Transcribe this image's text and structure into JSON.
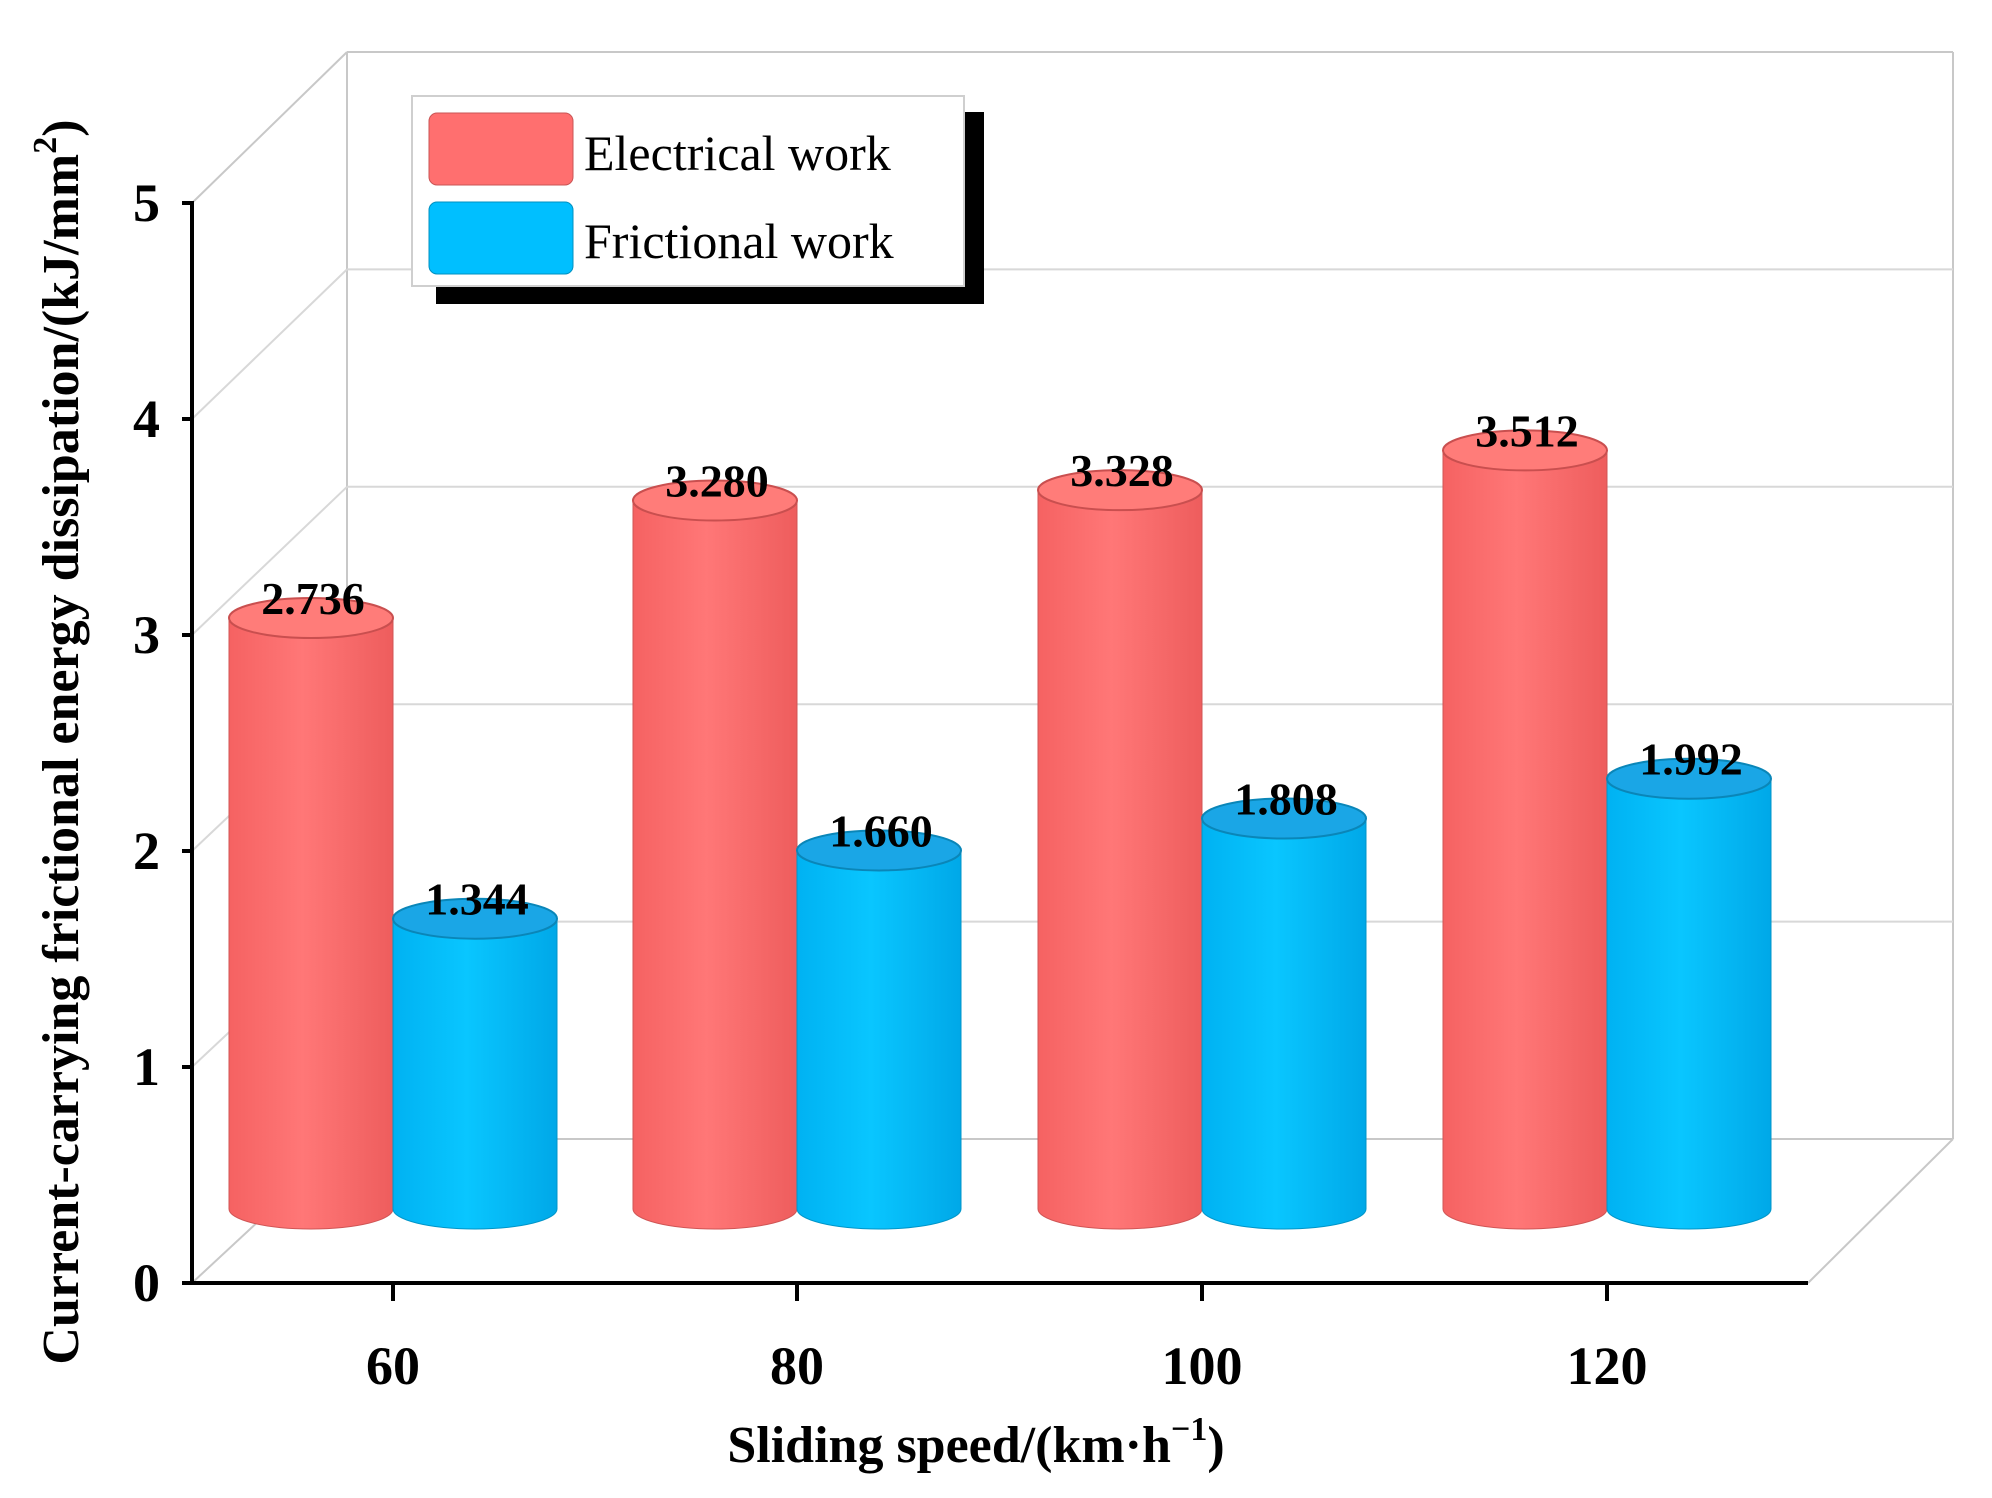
{
  "chart_data": {
    "type": "bar",
    "title": "",
    "xlabel": "Sliding speed/(km·h",
    "xlabel_sup": "−1",
    "xlabel_end": ")",
    "ylabel": "Current-carrying frictional energy dissipation/(kJ/mm",
    "ylabel_sup": "2",
    "ylabel_end": ")",
    "categories": [
      "60",
      "80",
      "100",
      "120"
    ],
    "series": [
      {
        "name": "Electrical work",
        "values": [
          2.736,
          3.28,
          3.328,
          3.512
        ],
        "labels": [
          "2.736",
          "3.280",
          "3.328",
          "3.512"
        ],
        "color": "#FF6F6F",
        "top_color": "#FF7C79"
      },
      {
        "name": "Frictional work",
        "values": [
          1.344,
          1.66,
          1.808,
          1.992
        ],
        "labels": [
          "1.344",
          "1.660",
          "1.808",
          "1.992"
        ],
        "color": "#00BFFF",
        "top_color": "#1AA6E6"
      }
    ],
    "ylim": [
      0,
      5
    ],
    "yticks": [
      "0",
      "1",
      "2",
      "3",
      "4",
      "5"
    ],
    "grid": true,
    "legend": "top-left",
    "style": "3d-cylinder"
  }
}
